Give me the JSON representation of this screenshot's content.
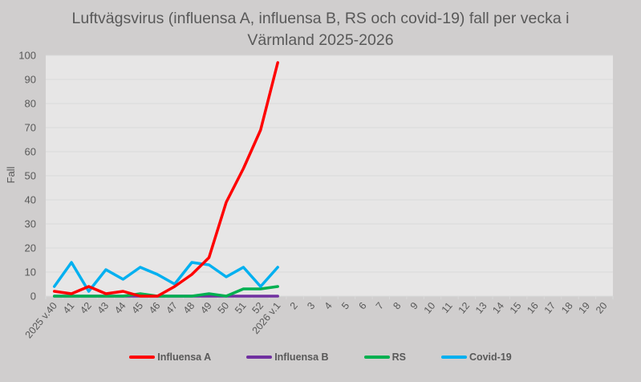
{
  "chart_data": {
    "type": "line",
    "title": "Luftvägsvirus (influensa A, influensa B, RS och covid-19) fall per vecka i Värmland 2025-2026",
    "title_lines": [
      "Luftvägsvirus (influensa A, influensa B, RS och covid-19) fall per vecka i",
      "Värmland 2025-2026"
    ],
    "xlabel": "",
    "ylabel": "Fall",
    "ylim": [
      0,
      100
    ],
    "yticks": [
      0,
      10,
      20,
      30,
      40,
      50,
      60,
      70,
      80,
      90,
      100
    ],
    "grid": true,
    "legend_position": "bottom",
    "categories": [
      "2025 v.40",
      "41",
      "42",
      "43",
      "44",
      "45",
      "46",
      "47",
      "48",
      "49",
      "50",
      "51",
      "52",
      "2026 v.1",
      "2",
      "3",
      "4",
      "5",
      "6",
      "7",
      "8",
      "9",
      "10",
      "11",
      "12",
      "13",
      "14",
      "15",
      "16",
      "17",
      "18",
      "19",
      "20"
    ],
    "series": [
      {
        "name": "Influensa A",
        "color": "#ff0000",
        "values": [
          2,
          1,
          4,
          1,
          2,
          0,
          0,
          4,
          9,
          16,
          39,
          53,
          69,
          97
        ]
      },
      {
        "name": "Influensa B",
        "color": "#7030a0",
        "values": [
          0,
          0,
          0,
          0,
          0,
          0,
          0,
          0,
          0,
          0,
          0,
          0,
          0,
          0
        ]
      },
      {
        "name": "RS",
        "color": "#00b050",
        "values": [
          0,
          0,
          0,
          0,
          0,
          1,
          0,
          0,
          0,
          1,
          0,
          3,
          3,
          4
        ]
      },
      {
        "name": "Covid-19",
        "color": "#00b0f0",
        "values": [
          4,
          14,
          2,
          11,
          7,
          12,
          9,
          5,
          14,
          13,
          8,
          12,
          4,
          12
        ]
      }
    ]
  }
}
